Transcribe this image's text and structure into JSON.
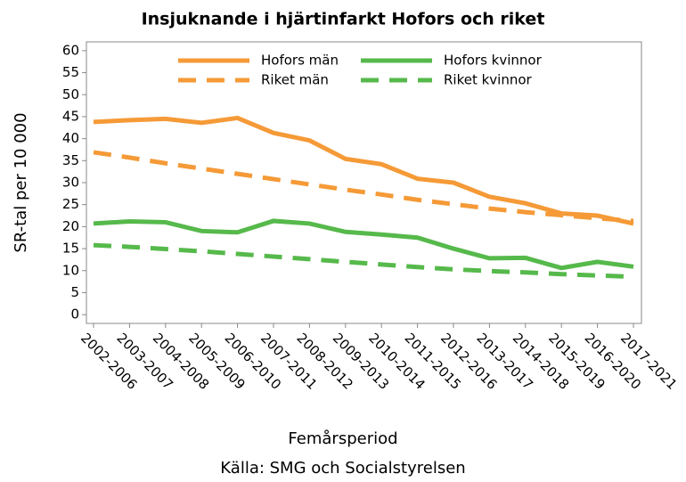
{
  "chart_data": {
    "type": "line",
    "title": "Insjuknande i hjärtinfarkt Hofors och riket",
    "x_label": "Femårsperiod",
    "y_label": "SR-tal per 10 000",
    "caption": "Källa: SMG och Socialstyrelsen",
    "categories": [
      "2002-2006",
      "2003-2007",
      "2004-2008",
      "2005-2009",
      "2006-2010",
      "2007-2011",
      "2008-2012",
      "2009-2013",
      "2010-2014",
      "2011-2015",
      "2012-2016",
      "2013-2017",
      "2014-2018",
      "2015-2019",
      "2016-2020",
      "2017-2021"
    ],
    "series": [
      {
        "name": "Hofors män",
        "color": "#f59a37",
        "dashed": false,
        "values": [
          43.8,
          44.2,
          44.5,
          43.6,
          44.7,
          41.3,
          39.6,
          35.4,
          34.2,
          30.9,
          30.0,
          26.8,
          25.3,
          23.0,
          22.5,
          20.7
        ]
      },
      {
        "name": "Hofors kvinnor",
        "color": "#56b94b",
        "dashed": false,
        "values": [
          20.7,
          21.2,
          21.0,
          19.0,
          18.7,
          21.3,
          20.7,
          18.8,
          18.2,
          17.5,
          15.0,
          12.8,
          12.9,
          10.6,
          12.0,
          10.9
        ]
      },
      {
        "name": "Riket män",
        "color": "#f59a37",
        "dashed": true,
        "values": [
          36.9,
          35.7,
          34.4,
          33.2,
          32.0,
          30.8,
          29.6,
          28.4,
          27.3,
          26.1,
          25.1,
          24.1,
          23.3,
          22.6,
          21.9,
          21.3
        ]
      },
      {
        "name": "Riket kvinnor",
        "color": "#56b94b",
        "dashed": true,
        "values": [
          15.8,
          15.4,
          14.9,
          14.4,
          13.8,
          13.2,
          12.6,
          12.0,
          11.4,
          10.8,
          10.3,
          9.9,
          9.6,
          9.2,
          8.9,
          8.6
        ]
      }
    ],
    "ylim": [
      -2,
      62
    ],
    "yticks": [
      0,
      5,
      10,
      15,
      20,
      25,
      30,
      35,
      40,
      45,
      50,
      55,
      60
    ],
    "legend": "top"
  }
}
